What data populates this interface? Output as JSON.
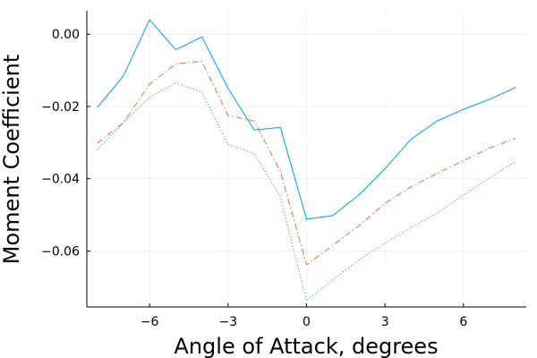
{
  "chart_data": {
    "type": "line",
    "title": "",
    "xlabel": "Angle of Attack, degrees",
    "ylabel": "Moment Coefficient",
    "xlim": [
      -8.4,
      8.4
    ],
    "ylim": [
      -0.0755,
      0.0065
    ],
    "xticks": [
      -6,
      -3,
      0,
      3,
      6
    ],
    "xtick_labels": [
      "−6",
      "−3",
      "0",
      "3",
      "6"
    ],
    "yticks": [
      0.0,
      -0.02,
      -0.04,
      -0.06
    ],
    "ytick_labels": [
      "0.00",
      "−0.02",
      "−0.04",
      "−0.06"
    ],
    "grid": true,
    "legend": "none",
    "x": [
      -8,
      -7,
      -6,
      -5,
      -4,
      -3,
      -2,
      -1,
      0,
      1,
      2,
      3,
      4,
      5,
      6,
      7,
      8
    ],
    "series": [
      {
        "color": "#009AFA",
        "style": "solid",
        "values": [
          -0.0203,
          -0.0115,
          0.004,
          -0.0043,
          -0.0007,
          -0.015,
          -0.0265,
          -0.0258,
          -0.0512,
          -0.0502,
          -0.0445,
          -0.0372,
          -0.029,
          -0.024,
          -0.0208,
          -0.018,
          -0.0147
        ]
      },
      {
        "color": "#E36F47",
        "style": "dashdot",
        "values": [
          -0.0302,
          -0.0245,
          -0.0138,
          -0.0082,
          -0.0075,
          -0.0225,
          -0.024,
          -0.038,
          -0.0638,
          -0.0585,
          -0.053,
          -0.0468,
          -0.0422,
          -0.0385,
          -0.035,
          -0.0315,
          -0.0288
        ]
      },
      {
        "color": "#3EA44E",
        "style": "dotted",
        "values": [
          -0.032,
          -0.0245,
          -0.0175,
          -0.0135,
          -0.016,
          -0.0305,
          -0.033,
          -0.045,
          -0.0738,
          -0.068,
          -0.0625,
          -0.0578,
          -0.0535,
          -0.0495,
          -0.0445,
          -0.0398,
          -0.0352
        ]
      }
    ]
  }
}
